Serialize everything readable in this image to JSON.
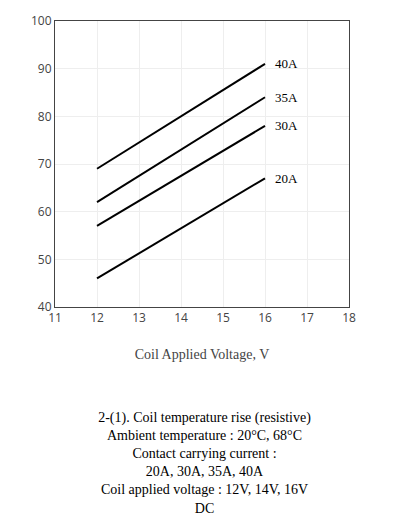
{
  "chart_data": {
    "type": "line",
    "title": "2-(1). Coil temperature rise (resistive)\nAmbient temperature : 20°C, 68°C\nContact carrying current :\n20A, 30A, 35A, 40A\nCoil applied voltage : 12V, 14V, 16V\nDC",
    "x_label": "Coil Applied Voltage, V",
    "x": [
      12,
      16
    ],
    "series": [
      {
        "name": "40A",
        "color": "#000000",
        "values": [
          69,
          91
        ]
      },
      {
        "name": "35A",
        "color": "#000000",
        "values": [
          62,
          84
        ]
      },
      {
        "name": "30A",
        "color": "#000000",
        "values": [
          57,
          78
        ]
      },
      {
        "name": "20A",
        "color": "#000000",
        "values": [
          46,
          67
        ]
      }
    ],
    "xlim": [
      11,
      18
    ],
    "ylim": [
      40,
      100
    ],
    "xticks": [
      11,
      12,
      13,
      14,
      15,
      16,
      17,
      18
    ],
    "yticks": [
      40,
      50,
      60,
      70,
      80,
      90,
      100
    ],
    "grid": true
  }
}
